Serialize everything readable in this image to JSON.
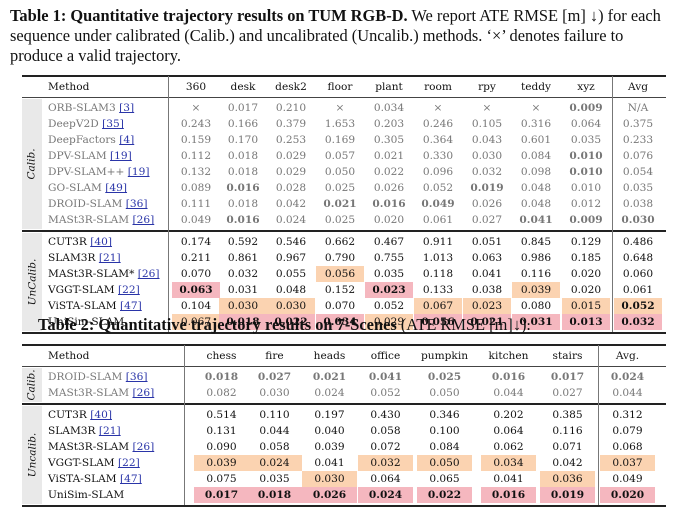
{
  "table1": {
    "caption_label": "Table 1: Quantitative trajectory results on TUM RGB-D.",
    "caption_text": " We report ATE RMSE [m] ↓) for each sequence under calibrated (Calib.) and uncalibrated (Uncalib.) methods. ‘×’ denotes failure to produce a valid trajectory.",
    "columns": [
      "Method",
      "360",
      "desk",
      "desk2",
      "floor",
      "plant",
      "room",
      "rpy",
      "teddy",
      "xyz",
      "Avg"
    ],
    "group_calib": "Calib.",
    "group_uncalib": "UnCalib.",
    "calib_rows": [
      {
        "method": "ORB-SLAM3",
        "ref": "[3]",
        "values": [
          "×",
          "0.017",
          "0.210",
          "×",
          "0.034",
          "×",
          "×",
          "×",
          "0.009",
          "N/A"
        ]
      },
      {
        "method": "DeepV2D",
        "ref": "[35]",
        "values": [
          "0.243",
          "0.166",
          "0.379",
          "1.653",
          "0.203",
          "0.246",
          "0.105",
          "0.316",
          "0.064",
          "0.375"
        ]
      },
      {
        "method": "DeepFactors",
        "ref": "[4]",
        "values": [
          "0.159",
          "0.170",
          "0.253",
          "0.169",
          "0.305",
          "0.364",
          "0.043",
          "0.601",
          "0.035",
          "0.233"
        ]
      },
      {
        "method": "DPV-SLAM",
        "ref": "[19]",
        "values": [
          "0.112",
          "0.018",
          "0.029",
          "0.057",
          "0.021",
          "0.330",
          "0.030",
          "0.084",
          "0.010",
          "0.076"
        ]
      },
      {
        "method": "DPV-SLAM++",
        "ref": "[19]",
        "values": [
          "0.132",
          "0.018",
          "0.029",
          "0.050",
          "0.022",
          "0.096",
          "0.032",
          "0.098",
          "0.010",
          "0.054"
        ]
      },
      {
        "method": "GO-SLAM",
        "ref": "[49]",
        "values": [
          "0.089",
          "0.016",
          "0.028",
          "0.025",
          "0.026",
          "0.052",
          "0.019",
          "0.048",
          "0.010",
          "0.035"
        ]
      },
      {
        "method": "DROID-SLAM",
        "ref": "[36]",
        "values": [
          "0.111",
          "0.018",
          "0.042",
          "0.021",
          "0.016",
          "0.049",
          "0.026",
          "0.048",
          "0.012",
          "0.038"
        ]
      },
      {
        "method": "MASt3R-SLAM",
        "ref": "[26]",
        "values": [
          "0.049",
          "0.016",
          "0.024",
          "0.025",
          "0.020",
          "0.061",
          "0.027",
          "0.041",
          "0.009",
          "0.030"
        ]
      }
    ],
    "uncalib_rows": [
      {
        "method": "CUT3R",
        "ref": "[40]",
        "values": [
          "0.174",
          "0.592",
          "0.546",
          "0.662",
          "0.467",
          "0.911",
          "0.051",
          "0.845",
          "0.129",
          "0.486"
        ]
      },
      {
        "method": "SLAM3R",
        "ref": "[21]",
        "values": [
          "0.211",
          "0.861",
          "0.967",
          "0.790",
          "0.755",
          "1.013",
          "0.063",
          "0.986",
          "0.185",
          "0.648"
        ]
      },
      {
        "method": "MASt3R-SLAM*",
        "ref": "[26]",
        "values": [
          "0.070",
          "0.032",
          "0.055",
          "0.056",
          "0.035",
          "0.118",
          "0.041",
          "0.116",
          "0.020",
          "0.060"
        ]
      },
      {
        "method": "VGGT-SLAM",
        "ref": "[22]",
        "values": [
          "0.063",
          "0.031",
          "0.048",
          "0.152",
          "0.023",
          "0.133",
          "0.038",
          "0.039",
          "0.020",
          "0.061"
        ]
      },
      {
        "method": "ViSTA-SLAM",
        "ref": "[47]",
        "values": [
          "0.104",
          "0.030",
          "0.030",
          "0.070",
          "0.052",
          "0.067",
          "0.023",
          "0.080",
          "0.015",
          "0.052"
        ]
      },
      {
        "method": "UniSim-SLAM",
        "ref": "",
        "values": [
          "0.067",
          "0.018",
          "0.022",
          "0.034",
          "0.029",
          "0.056",
          "0.021",
          "0.031",
          "0.013",
          "0.032"
        ]
      }
    ]
  },
  "table2": {
    "caption_label": "Table 2: Quantitative trajectory results on 7-Scenes",
    "caption_text": " (ATE RMSE [m]↓).",
    "columns": [
      "Method",
      "chess",
      "fire",
      "heads",
      "office",
      "pumpkin",
      "kitchen",
      "stairs",
      "Avg."
    ],
    "group_calib": "Calib.",
    "group_uncalib": "Uncalib.",
    "calib_rows": [
      {
        "method": "DROID-SLAM",
        "ref": "[36]",
        "values": [
          "0.018",
          "0.027",
          "0.021",
          "0.041",
          "0.025",
          "0.016",
          "0.017",
          "0.024"
        ]
      },
      {
        "method": "MASt3R-SLAM",
        "ref": "[26]",
        "values": [
          "0.082",
          "0.030",
          "0.024",
          "0.052",
          "0.050",
          "0.044",
          "0.027",
          "0.044"
        ]
      }
    ],
    "uncalib_rows": [
      {
        "method": "CUT3R",
        "ref": "[40]",
        "values": [
          "0.514",
          "0.110",
          "0.197",
          "0.430",
          "0.346",
          "0.202",
          "0.385",
          "0.312"
        ]
      },
      {
        "method": "SLAM3R",
        "ref": "[21]",
        "values": [
          "0.131",
          "0.044",
          "0.040",
          "0.058",
          "0.100",
          "0.064",
          "0.116",
          "0.079"
        ]
      },
      {
        "method": "MASt3R-SLAM",
        "ref": "[26]",
        "values": [
          "0.090",
          "0.058",
          "0.039",
          "0.072",
          "0.084",
          "0.062",
          "0.071",
          "0.068"
        ]
      },
      {
        "method": "VGGT-SLAM",
        "ref": "[22]",
        "values": [
          "0.039",
          "0.024",
          "0.041",
          "0.032",
          "0.050",
          "0.034",
          "0.042",
          "0.037"
        ]
      },
      {
        "method": "ViSTA-SLAM",
        "ref": "[47]",
        "values": [
          "0.075",
          "0.035",
          "0.030",
          "0.064",
          "0.065",
          "0.041",
          "0.036",
          "0.049"
        ]
      },
      {
        "method": "UniSim-SLAM",
        "ref": "",
        "values": [
          "0.017",
          "0.018",
          "0.026",
          "0.024",
          "0.022",
          "0.016",
          "0.019",
          "0.020"
        ]
      }
    ]
  }
}
